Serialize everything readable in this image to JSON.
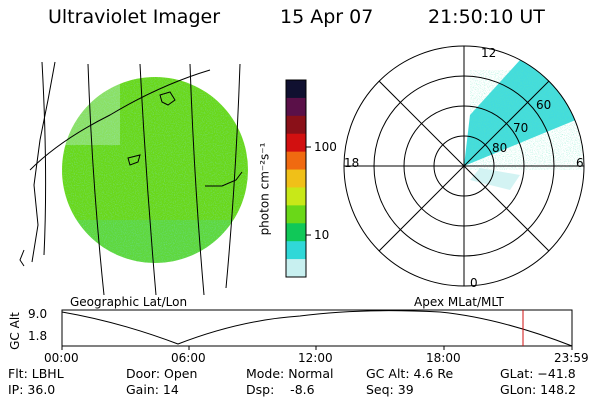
{
  "header": {
    "title": "Ultraviolet Imager",
    "date": "15 Apr 07",
    "time": "21:50:10 UT"
  },
  "colorbar": {
    "unit_label": "photon cm⁻²s⁻¹",
    "ticks": [
      "100",
      "10"
    ],
    "colors": [
      "#101030",
      "#5a1048",
      "#8a1018",
      "#d21010",
      "#f06a10",
      "#f0c018",
      "#c8e818",
      "#6ad818",
      "#10c858",
      "#30d8d8",
      "#c8f0f0"
    ]
  },
  "geo_panel": {
    "label": "Geographic Lat/Lon",
    "disk_color": "#6ad818",
    "edge_color": "#30d8d8"
  },
  "polar_panel": {
    "label": "Apex MLat/MLT",
    "mlt_labels": {
      "top": "12",
      "left": "18",
      "right": "6",
      "bottom": "0"
    },
    "mlat_labels": [
      "60",
      "70",
      "80"
    ]
  },
  "orbit_plot": {
    "ylabel": "GC Alt",
    "yticks": [
      "9.0",
      "1.8"
    ],
    "xticks": [
      "00:00",
      "06:00",
      "12:00",
      "18:00",
      "23:59"
    ],
    "marker_color": "#d01010"
  },
  "footer": {
    "flt": "Flt: LBHL",
    "ip": "IP: 36.0",
    "door": "Door: Open",
    "gain": "Gain: 14",
    "mode": "Mode: Normal",
    "dsp": "Dsp:    -8.6",
    "gcalt": "GC Alt: 4.6 Re",
    "seq": "Seq: 39",
    "glat": "GLat: −41.8",
    "glon": "GLon: 148.2"
  }
}
